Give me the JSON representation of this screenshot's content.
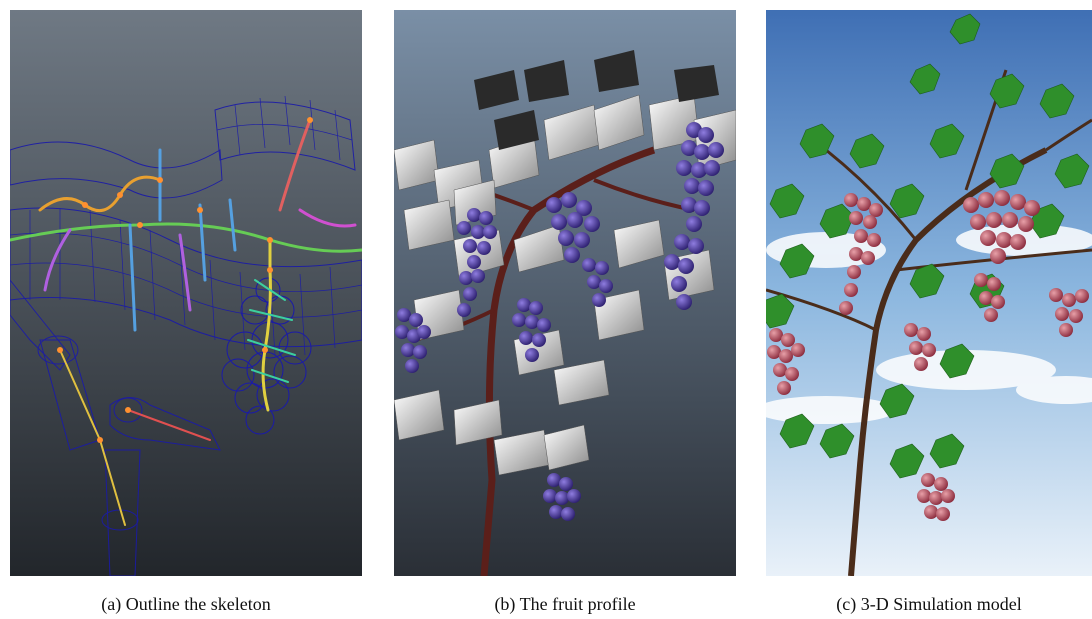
{
  "figure": {
    "panels": [
      {
        "caption": "(a) Outline the skeleton"
      },
      {
        "caption": "(b) The fruit profile"
      },
      {
        "caption": "(c) 3-D Simulation model"
      }
    ]
  },
  "colors": {
    "viewport_top": "#6f7984",
    "viewport_bottom": "#22262b",
    "wireframe": "#1a1aa8",
    "grape_purple": "#4b3a9c",
    "vine_brown": "#6b2b24",
    "grape_red": "#b24a5b",
    "leaf_green": "#2f8f2b",
    "sky_blue": "#4a7bbf"
  },
  "icons": [
    "skeleton-wireframe-illustration",
    "grape-vine-profile-illustration",
    "grape-vine-3d-model-illustration"
  ]
}
